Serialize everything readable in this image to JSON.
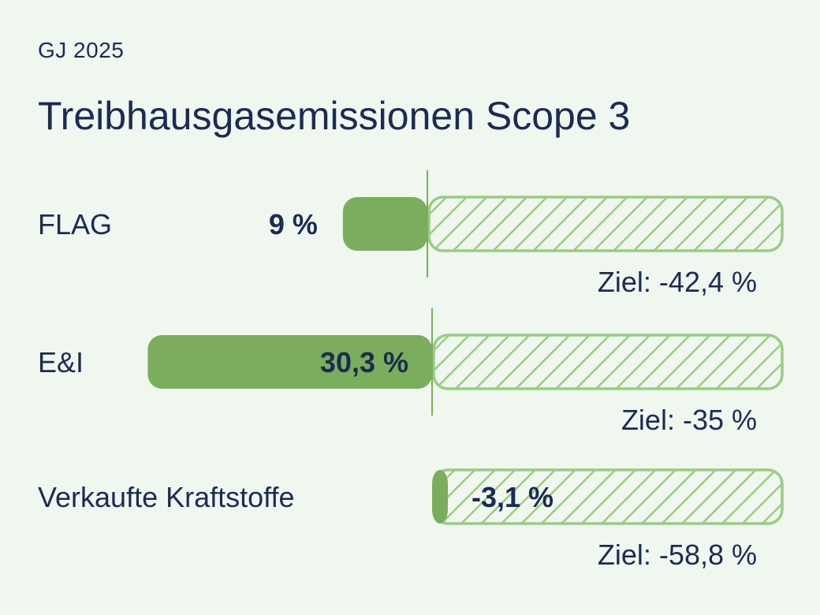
{
  "header": {
    "subtitle": "GJ 2025",
    "title": "Treibhausgasemissionen Scope 3"
  },
  "colors": {
    "background": "#eff7ee",
    "bar_fill": "#7aad5c",
    "target_stroke": "#99cc84",
    "text": "#1c2b55"
  },
  "chart_data": {
    "type": "bar",
    "orientation": "horizontal",
    "title": "Treibhausgasemissionen Scope 3",
    "categories": [
      "FLAG",
      "E&I",
      "Verkaufte Kraftstoffe"
    ],
    "series": [
      {
        "values": [
          9,
          30.3,
          -3.1
        ],
        "labels": [
          "9 %",
          "30,3 %",
          "-3,1 %"
        ]
      },
      {
        "name": "Ziel",
        "values": [
          -42.4,
          -35,
          -58.8
        ],
        "labels": [
          "Ziel: -42,4 %",
          "Ziel: -35 %",
          "Ziel: -58,8 %"
        ]
      }
    ],
    "baseline_marker": [
      true,
      true,
      false
    ],
    "target_style": "hatched"
  }
}
